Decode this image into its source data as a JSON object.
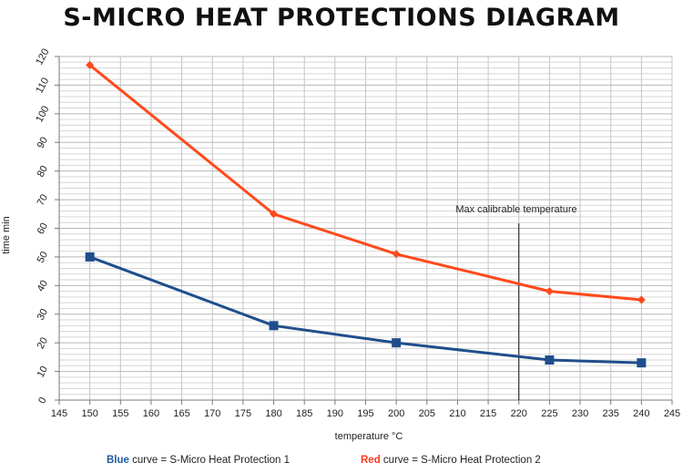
{
  "chart_data": {
    "type": "line",
    "title": "S-MICRO HEAT PROTECTIONS DIAGRAM",
    "xlabel": "temperature °C",
    "ylabel": "time min",
    "xlim": [
      145,
      245
    ],
    "ylim": [
      0,
      120
    ],
    "x_ticks": [
      145,
      150,
      155,
      160,
      165,
      170,
      175,
      180,
      185,
      190,
      195,
      200,
      205,
      210,
      215,
      220,
      225,
      230,
      235,
      240,
      245
    ],
    "y_ticks": [
      0,
      10,
      20,
      30,
      40,
      50,
      60,
      70,
      80,
      90,
      100,
      110,
      120
    ],
    "grid": true,
    "series": [
      {
        "name": "S-Micro Heat Protection 1",
        "color": "#1f4e8c",
        "marker": "square",
        "x": [
          150,
          180,
          200,
          225,
          240
        ],
        "y": [
          50,
          26,
          20,
          14,
          13
        ]
      },
      {
        "name": "S-Micro Heat Protection 2",
        "color": "#ff4a1c",
        "marker": "diamond",
        "x": [
          150,
          180,
          200,
          225,
          240
        ],
        "y": [
          117,
          65,
          51,
          38,
          35
        ]
      }
    ],
    "annotation": {
      "text": "Max calibrable temperature",
      "x": 220
    }
  },
  "legend": {
    "blue_word": "Blue",
    "blue_text": " curve = S-Micro Heat Protection 1",
    "red_word": "Red",
    "red_text": " curve = S-Micro Heat Protection 2",
    "blue_color": "#1f5ba0",
    "red_color": "#ff3b1f"
  }
}
